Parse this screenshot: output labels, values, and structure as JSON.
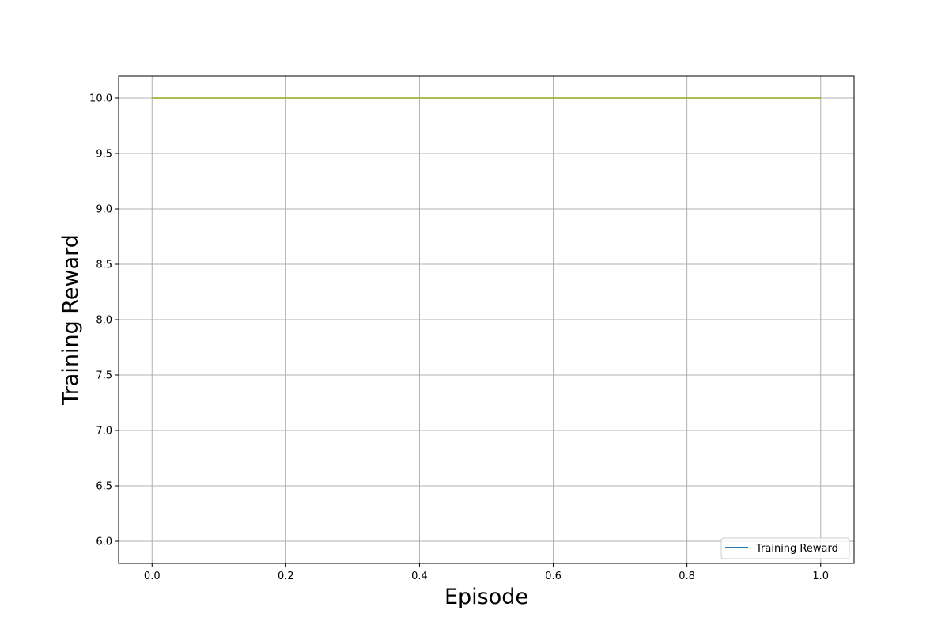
{
  "chart_data": {
    "type": "line",
    "xlabel": "Episode",
    "ylabel": "Training Reward",
    "xlim": [
      -0.05,
      1.05
    ],
    "ylim": [
      5.8,
      10.2
    ],
    "x_ticks": [
      0.0,
      0.2,
      0.4,
      0.6,
      0.8,
      1.0
    ],
    "x_tick_labels": [
      "0.0",
      "0.2",
      "0.4",
      "0.6",
      "0.8",
      "1.0"
    ],
    "y_ticks": [
      6.0,
      6.5,
      7.0,
      7.5,
      8.0,
      8.5,
      9.0,
      9.5,
      10.0
    ],
    "y_tick_labels": [
      "6.0",
      "6.5",
      "7.0",
      "7.5",
      "8.0",
      "8.5",
      "9.0",
      "9.5",
      "10.0"
    ],
    "grid": true,
    "legend_position": "lower-right",
    "legend_entries": [
      {
        "label": "Training Reward",
        "color": "#1f77b4"
      }
    ],
    "series": [
      {
        "name": "Training Reward",
        "color": "#1f77b4",
        "x": [
          0.0,
          1.0
        ],
        "y": [
          10.0,
          10.0
        ]
      },
      {
        "color": "#bcbd22",
        "x": [
          0.0,
          1.0
        ],
        "y": [
          10.0,
          10.0
        ]
      }
    ]
  }
}
